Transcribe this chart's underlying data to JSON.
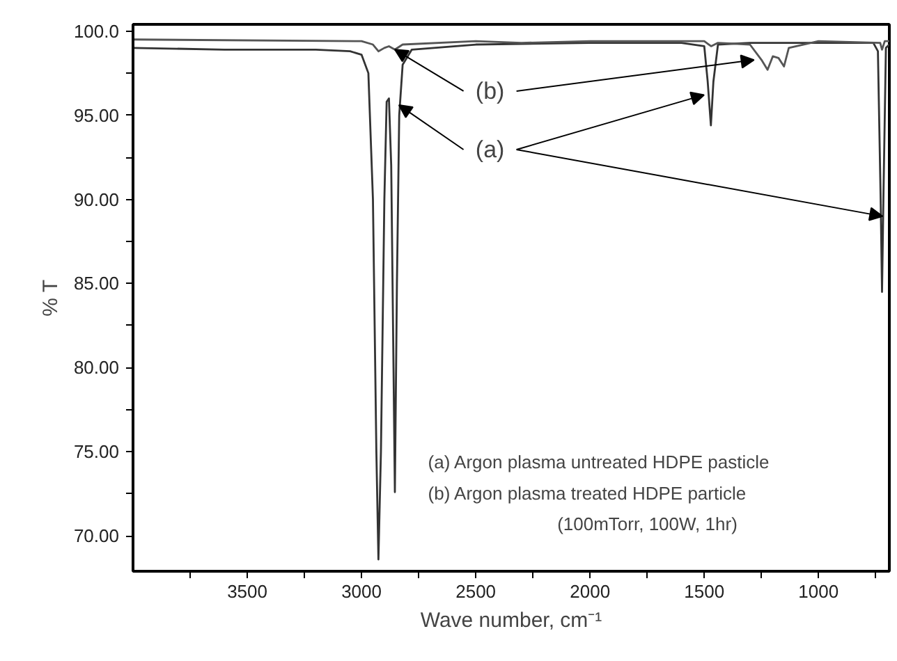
{
  "chart_data": {
    "type": "line",
    "xlabel": "Wave number, cm⁻¹",
    "ylabel": "% T",
    "xlim": [
      4000,
      690
    ],
    "ylim": [
      67.9,
      100.4
    ],
    "xticks": [
      {
        "value": 3750,
        "label": null
      },
      3500,
      {
        "value": 3250,
        "label": null
      },
      3000,
      {
        "value": 2750,
        "label": null
      },
      2500,
      {
        "value": 2250,
        "label": null
      },
      2000,
      {
        "value": 1750,
        "label": null
      },
      1500,
      {
        "value": 1250,
        "label": null
      },
      1000,
      {
        "value": 750,
        "label": null
      }
    ],
    "yticks": [
      {
        "value": 70,
        "label": "70.00"
      },
      {
        "value": 72.5,
        "label": null
      },
      {
        "value": 75,
        "label": "75.00"
      },
      {
        "value": 77.5,
        "label": null
      },
      {
        "value": 80,
        "label": "80.00"
      },
      {
        "value": 82.5,
        "label": null
      },
      {
        "value": 85,
        "label": "85.00"
      },
      {
        "value": 87.5,
        "label": null
      },
      {
        "value": 90,
        "label": "90.00"
      },
      {
        "value": 92.5,
        "label": null
      },
      {
        "value": 95,
        "label": "95.00"
      },
      {
        "value": 97.5,
        "label": null
      },
      {
        "value": 100,
        "label": "100.0"
      }
    ],
    "marker": "none",
    "line_style": "solid",
    "series": [
      {
        "color": "#333333",
        "x": [
          4000,
          3600,
          3200,
          3050,
          3000,
          2970,
          2950,
          2935,
          2926,
          2915,
          2900,
          2890,
          2880,
          2870,
          2860,
          2854,
          2845,
          2835,
          2820,
          2780,
          2500,
          2000,
          1600,
          1500,
          1485,
          1471,
          1460,
          1440,
          1300,
          1000,
          760,
          740,
          728,
          722,
          716,
          705,
          690
        ],
        "values": [
          99.0,
          98.9,
          98.9,
          98.8,
          98.6,
          97.5,
          90,
          75,
          68.6,
          75,
          90,
          95.8,
          96.0,
          92,
          80,
          72.6,
          85,
          95,
          98.0,
          98.9,
          99.2,
          99.3,
          99.3,
          99.1,
          97,
          94.4,
          97,
          99.2,
          99.3,
          99.3,
          99.3,
          98.8,
          90,
          84.5,
          90,
          99.0,
          99.2
        ]
      },
      {
        "color": "#555555",
        "x": [
          4000,
          3000,
          2950,
          2926,
          2900,
          2880,
          2854,
          2820,
          2500,
          2300,
          2000,
          1500,
          1470,
          1440,
          1300,
          1250,
          1223,
          1200,
          1175,
          1151,
          1130,
          1000,
          730,
          722,
          710,
          690
        ],
        "values": [
          99.5,
          99.4,
          99.2,
          98.8,
          99.0,
          99.1,
          98.9,
          99.2,
          99.4,
          99.3,
          99.4,
          99.4,
          99.1,
          99.3,
          99.2,
          98.3,
          97.7,
          98.5,
          98.4,
          97.9,
          99.0,
          99.4,
          99.3,
          98.9,
          99.4,
          99.4
        ]
      }
    ],
    "annotations": [
      {
        "text": "(b)",
        "x": 2854,
        "y": 98.9
      },
      {
        "text": "(a)",
        "x": 2836,
        "y": 95.6
      },
      "(a) Argon plasma untreated HDPE pasticle",
      "(b) Argon plasma treated HDPE particle",
      "(100mTorr, 100W, 1hr)"
    ]
  }
}
